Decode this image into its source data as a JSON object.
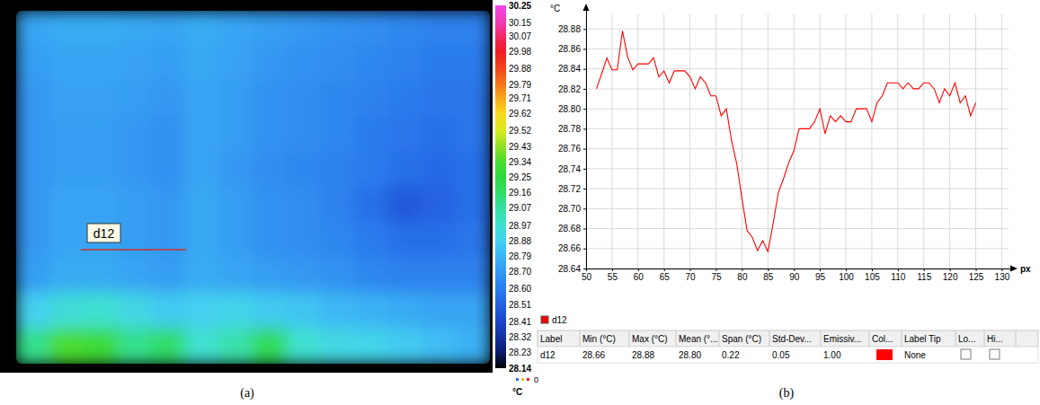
{
  "chart_data": [
    {
      "type": "heatmap",
      "caption": "(a)",
      "annotation": "d12",
      "cells": [
        [
          28.74,
          28.76,
          28.76,
          28.75,
          28.74,
          28.76,
          28.74,
          28.72,
          28.7,
          28.68,
          28.66,
          28.64,
          28.62,
          28.62
        ],
        [
          28.72,
          28.74,
          28.74,
          28.73,
          28.72,
          28.75,
          28.73,
          28.7,
          28.68,
          28.66,
          28.64,
          28.62,
          28.6,
          28.6
        ],
        [
          28.7,
          28.73,
          28.73,
          28.72,
          28.7,
          28.74,
          28.72,
          28.68,
          28.66,
          28.64,
          28.62,
          28.6,
          28.58,
          28.58
        ],
        [
          28.7,
          28.72,
          28.72,
          28.7,
          28.68,
          28.74,
          28.72,
          28.68,
          28.66,
          28.64,
          28.6,
          28.58,
          28.56,
          28.58
        ],
        [
          28.7,
          28.72,
          28.72,
          28.7,
          28.68,
          28.74,
          28.7,
          28.66,
          28.64,
          28.62,
          28.6,
          28.56,
          28.54,
          28.56
        ],
        [
          28.7,
          28.74,
          28.74,
          28.72,
          28.7,
          28.75,
          28.72,
          28.68,
          28.66,
          28.62,
          28.56,
          28.48,
          28.52,
          28.56
        ],
        [
          28.7,
          28.74,
          28.74,
          28.72,
          28.7,
          28.75,
          28.72,
          28.68,
          28.66,
          28.64,
          28.6,
          28.56,
          28.56,
          28.58
        ],
        [
          28.72,
          28.76,
          28.76,
          28.74,
          28.72,
          28.76,
          28.74,
          28.72,
          28.7,
          28.68,
          28.64,
          28.62,
          28.62,
          28.62
        ],
        [
          28.88,
          28.95,
          28.97,
          28.92,
          28.86,
          28.88,
          28.9,
          28.86,
          28.84,
          28.8,
          28.78,
          28.76,
          28.74,
          28.74
        ],
        [
          29.1,
          29.34,
          29.3,
          29.1,
          29.16,
          28.97,
          29.05,
          29.2,
          28.97,
          28.92,
          28.9,
          28.86,
          28.82,
          28.78
        ]
      ],
      "colorbar": {
        "range": [
          28.14,
          30.25
        ],
        "ticks": [
          30.25,
          30.15,
          30.07,
          29.98,
          29.88,
          29.79,
          29.71,
          29.62,
          29.52,
          29.43,
          29.34,
          29.25,
          29.16,
          29.07,
          28.97,
          28.88,
          28.79,
          {
            "value": 28.7,
            "label": "28.70"
          },
          {
            "value": 28.6,
            "label": "28.60"
          },
          28.51,
          28.41,
          28.32,
          28.23,
          28.14
        ],
        "colors": [
          "#f048e8",
          "#f03cb4",
          "#f02a64",
          "#ee1c24",
          "#f2481e",
          "#f6781c",
          "#f8a81c",
          "#f8d820",
          "#d8e820",
          "#90e028",
          "#48dc30",
          "#30d840",
          "#30dc68",
          "#38e0a0",
          "#40e0d0",
          "#44d0f0",
          "#3cb4f4",
          "#3498f2",
          "#2c7cec",
          "#2460e0",
          "#1c44c8",
          "#1430a0",
          "#0c1c68",
          "#000000"
        ],
        "unit": "°C",
        "note": "0"
      }
    },
    {
      "type": "line",
      "caption": "(b)",
      "x_label": "px",
      "y_label": "°C",
      "x": [
        52,
        53,
        54,
        55,
        56,
        57,
        58,
        59,
        60,
        61,
        62,
        63,
        64,
        65,
        66,
        67,
        68,
        69,
        70,
        71,
        72,
        73,
        74,
        75,
        76,
        77,
        78,
        79,
        80,
        81,
        82,
        83,
        84,
        85,
        86,
        87,
        88,
        89,
        90,
        91,
        92,
        93,
        94,
        95,
        96,
        97,
        98,
        99,
        100,
        101,
        102,
        103,
        104,
        105,
        106,
        107,
        108,
        109,
        110,
        111,
        112,
        113,
        114,
        115,
        116,
        117,
        118,
        119,
        120,
        121,
        122,
        123,
        124,
        125
      ],
      "series": [
        {
          "name": "d12",
          "color": "#ff0000",
          "values": [
            28.82,
            28.835,
            28.851,
            28.839,
            28.839,
            28.878,
            28.852,
            28.839,
            28.845,
            28.845,
            28.845,
            28.851,
            28.832,
            28.838,
            28.826,
            28.838,
            28.838,
            28.838,
            28.832,
            28.82,
            28.832,
            28.826,
            28.813,
            28.813,
            28.793,
            28.8,
            28.768,
            28.745,
            28.71,
            28.678,
            28.671,
            28.658,
            28.668,
            28.657,
            28.685,
            28.716,
            28.73,
            28.746,
            28.758,
            28.78,
            28.78,
            28.78,
            28.787,
            28.8,
            28.775,
            28.793,
            28.787,
            28.793,
            28.787,
            28.787,
            28.8,
            28.8,
            28.8,
            28.787,
            28.806,
            28.813,
            28.826,
            28.826,
            28.826,
            28.82,
            28.826,
            28.82,
            28.82,
            28.826,
            28.826,
            28.82,
            28.806,
            28.82,
            28.813,
            28.826,
            28.806,
            28.813,
            28.793,
            28.806
          ]
        }
      ],
      "xlim": [
        50,
        132
      ],
      "xticks": [
        50,
        55,
        60,
        65,
        70,
        75,
        80,
        85,
        90,
        95,
        100,
        105,
        110,
        115,
        120,
        125,
        130
      ],
      "ylim": [
        28.64,
        28.9
      ],
      "yticks": [
        28.64,
        28.66,
        28.68,
        {
          "value": 28.7,
          "label": "28.70"
        },
        28.72,
        28.74,
        28.76,
        28.78,
        {
          "value": 28.8,
          "label": "28.80"
        },
        28.82,
        28.84,
        28.86,
        28.88
      ],
      "grid": true,
      "legend": "bottom",
      "table": {
        "columns": [
          "Label",
          "Min (°C)",
          "Max (°C)",
          "Mean (°...",
          "Span (°C)",
          "Std-Dev...",
          "Emissiv...",
          "Col...",
          "Label Tip",
          "Lo...",
          "Hi..."
        ],
        "rows": [
          [
            "d12",
            "28.66",
            "28.88",
            "28.80",
            "0.22",
            "0.05",
            "1.00",
            null,
            "None",
            null,
            null
          ]
        ]
      }
    }
  ]
}
